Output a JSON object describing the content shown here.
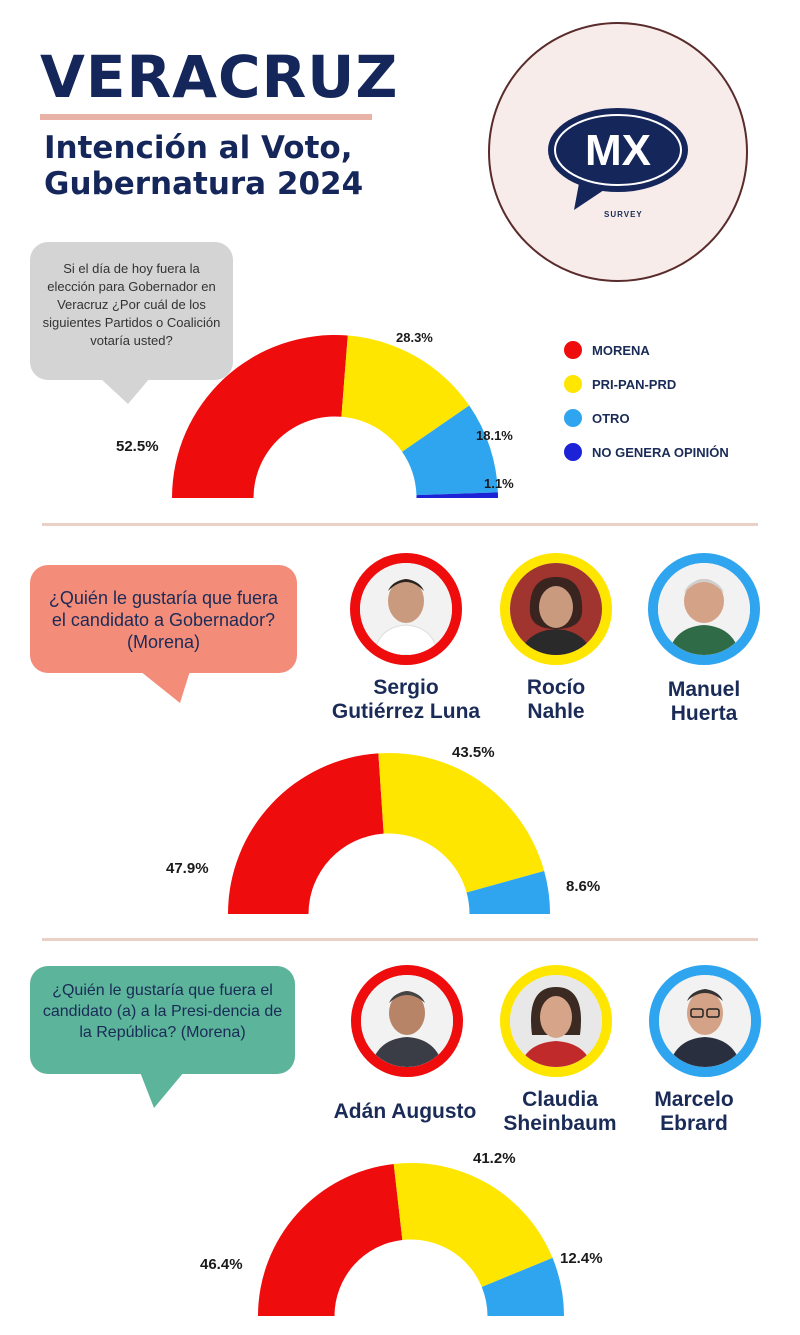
{
  "header": {
    "title": "VERACRUZ",
    "subtitle_line1": "Intención al Voto,",
    "subtitle_line2": "Gubernatura 2024"
  },
  "logo": {
    "text": "MX",
    "caption": "SURVEY"
  },
  "colors": {
    "red": "#ee0c0c",
    "yellow": "#ffe600",
    "lightblue": "#2fa5ef",
    "blue": "#1c22d6"
  },
  "section1": {
    "question": "Si el día de hoy fuera la elección para Gobernador en Veracruz ¿Por cuál de los siguientes Partidos o Coalición votaría usted?",
    "legend": [
      {
        "label": "MORENA",
        "color": "#ee0c0c"
      },
      {
        "label": "PRI-PAN-PRD",
        "color": "#ffe600"
      },
      {
        "label": "OTRO",
        "color": "#2fa5ef"
      },
      {
        "label": "NO GENERA OPINIÓN",
        "color": "#1c22d6"
      }
    ]
  },
  "section2": {
    "question": "¿Quién le gustaría que fuera el candidato a Gobernador? (Morena)",
    "candidates": [
      {
        "name_line1": "Sergio",
        "name_line2": "Gutiérrez Luna",
        "ring_color": "#ee0c0c"
      },
      {
        "name_line1": "Rocío",
        "name_line2": "Nahle",
        "ring_color": "#ffe600"
      },
      {
        "name_line1": "Manuel",
        "name_line2": "Huerta",
        "ring_color": "#2fa5ef"
      }
    ]
  },
  "section3": {
    "question": "¿Quién le gustaría que fuera el candidato (a)  a la Presi-dencia de la República? (Morena)",
    "candidates": [
      {
        "name_line1": "Adán Augusto",
        "name_line2": "",
        "ring_color": "#ee0c0c"
      },
      {
        "name_line1": "Claudia",
        "name_line2": "Sheinbaum",
        "ring_color": "#ffe600"
      },
      {
        "name_line1": "Marcelo",
        "name_line2": "Ebrard",
        "ring_color": "#2fa5ef"
      }
    ]
  },
  "chart_data": [
    {
      "type": "pie",
      "subtype": "semi-donut",
      "categories": [
        "MORENA",
        "PRI-PAN-PRD",
        "OTRO",
        "NO GENERA OPINIÓN"
      ],
      "values": [
        52.5,
        28.3,
        18.1,
        1.1
      ],
      "labels": [
        "52.5%",
        "28.3%",
        "18.1%",
        "1.1%"
      ],
      "colors": [
        "#ee0c0c",
        "#ffe600",
        "#2fa5ef",
        "#1c22d6"
      ],
      "legend": "right"
    },
    {
      "type": "pie",
      "subtype": "semi-donut",
      "categories": [
        "Sergio Gutiérrez Luna",
        "Rocío Nahle",
        "Manuel Huerta"
      ],
      "values": [
        47.9,
        43.5,
        8.6
      ],
      "labels": [
        "47.9%",
        "43.5%",
        "8.6%"
      ],
      "colors": [
        "#ee0c0c",
        "#ffe600",
        "#2fa5ef"
      ]
    },
    {
      "type": "pie",
      "subtype": "semi-donut",
      "categories": [
        "Adán Augusto",
        "Claudia Sheinbaum",
        "Marcelo Ebrard"
      ],
      "values": [
        46.4,
        41.2,
        12.4
      ],
      "labels": [
        "46.4%",
        "41.2%",
        "12.4%"
      ],
      "colors": [
        "#ee0c0c",
        "#ffe600",
        "#2fa5ef"
      ]
    }
  ]
}
